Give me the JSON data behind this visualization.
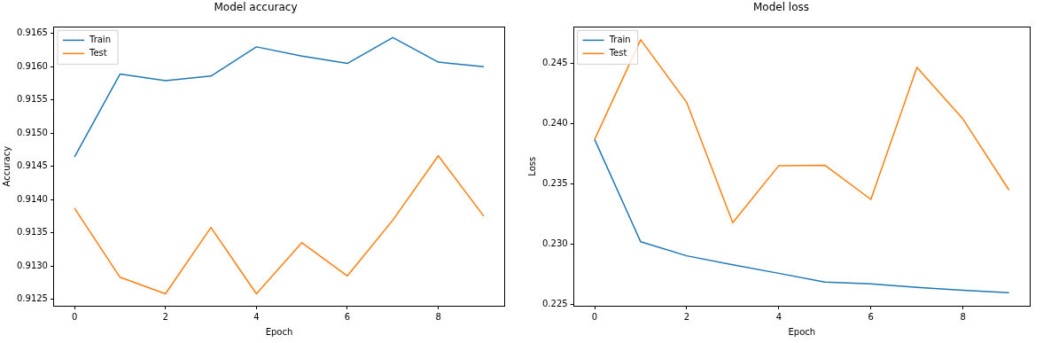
{
  "chart_data": [
    {
      "type": "line",
      "title": "Model accuracy",
      "xlabel": "Epoch",
      "ylabel": "Accuracy",
      "x": [
        0,
        1,
        2,
        3,
        4,
        5,
        6,
        7,
        8,
        9
      ],
      "series": [
        {
          "name": "Train",
          "color": "#1f77b4",
          "values": [
            0.91464,
            0.91589,
            0.91579,
            0.91586,
            0.9163,
            0.91616,
            0.91605,
            0.91644,
            0.91607,
            0.916
          ]
        },
        {
          "name": "Test",
          "color": "#ff7f0e",
          "values": [
            0.91387,
            0.91283,
            0.91258,
            0.91358,
            0.91258,
            0.91335,
            0.91285,
            0.91369,
            0.91466,
            0.91375
          ]
        }
      ],
      "xlim": [
        -0.45,
        9.45
      ],
      "xticks": [
        0,
        2,
        4,
        6,
        8
      ],
      "ylim": [
        0.9124,
        0.9166
      ],
      "yticks": [
        {
          "value": 0.9125,
          "label": "0.9125"
        },
        {
          "value": 0.913,
          "label": "0.9130"
        },
        {
          "value": 0.9135,
          "label": "0.9135"
        },
        {
          "value": 0.914,
          "label": "0.9140"
        },
        {
          "value": 0.9145,
          "label": "0.9145"
        },
        {
          "value": 0.915,
          "label": "0.9150"
        },
        {
          "value": 0.9155,
          "label": "0.9155"
        },
        {
          "value": 0.916,
          "label": "0.9160"
        },
        {
          "value": 0.9165,
          "label": "0.9165"
        }
      ],
      "grid": false,
      "legend": "top left",
      "marker": "none",
      "line_style": "solid"
    },
    {
      "type": "line",
      "title": "Model loss",
      "xlabel": "Epoch",
      "ylabel": "Loss",
      "x": [
        0,
        1,
        2,
        3,
        4,
        5,
        6,
        7,
        8,
        9
      ],
      "series": [
        {
          "name": "Train",
          "color": "#1f77b4",
          "values": [
            0.23868,
            0.2302,
            0.22904,
            0.2283,
            0.22759,
            0.22687,
            0.22672,
            0.22643,
            0.22619,
            0.22598
          ]
        },
        {
          "name": "Test",
          "color": "#ff7f0e",
          "values": [
            0.23868,
            0.24694,
            0.24174,
            0.23179,
            0.23651,
            0.23654,
            0.23371,
            0.24465,
            0.24037,
            0.23448
          ]
        }
      ],
      "xlim": [
        -0.45,
        9.45
      ],
      "xticks": [
        0,
        2,
        4,
        6,
        8
      ],
      "ylim": [
        0.2249,
        0.248
      ],
      "yticks": [
        0.225,
        {
          "value": 0.23,
          "label": "0.230"
        },
        0.235,
        {
          "value": 0.24,
          "label": "0.240"
        },
        0.245
      ],
      "grid": false,
      "legend": "top left",
      "marker": "none",
      "line_style": "solid"
    }
  ]
}
